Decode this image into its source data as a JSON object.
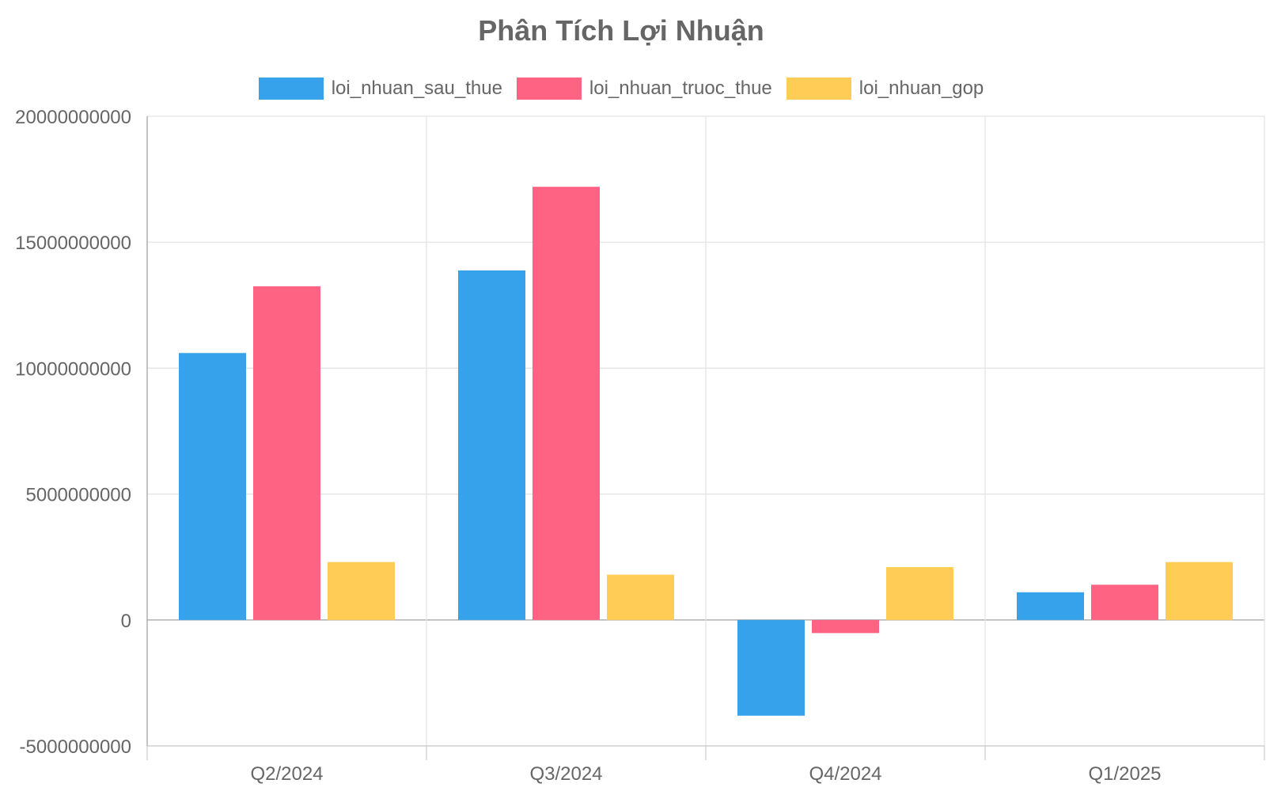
{
  "chart_data": {
    "type": "bar",
    "title": "Phân Tích Lợi Nhuận",
    "categories": [
      "Q2/2024",
      "Q3/2024",
      "Q4/2024",
      "Q1/2025"
    ],
    "series": [
      {
        "name": "loi_nhuan_sau_thue",
        "color": "#36a2eb",
        "values": [
          10600000000,
          13880000000,
          -3800000000,
          1100000000
        ]
      },
      {
        "name": "loi_nhuan_truoc_thue",
        "color": "#ff6384",
        "values": [
          13250000000,
          17200000000,
          -520000000,
          1400000000
        ]
      },
      {
        "name": "loi_nhuan_gop",
        "color": "#ffcd56",
        "values": [
          2300000000,
          1800000000,
          2100000000,
          2300000000
        ]
      }
    ],
    "ylim": [
      -5000000000,
      20000000000
    ],
    "yticks": [
      "20000000000",
      "15000000000",
      "10000000000",
      "5000000000",
      "0",
      "-5000000000"
    ],
    "ytick_values": [
      20000000000,
      15000000000,
      10000000000,
      5000000000,
      0,
      -5000000000
    ],
    "grid": true,
    "legend_position": "top"
  }
}
